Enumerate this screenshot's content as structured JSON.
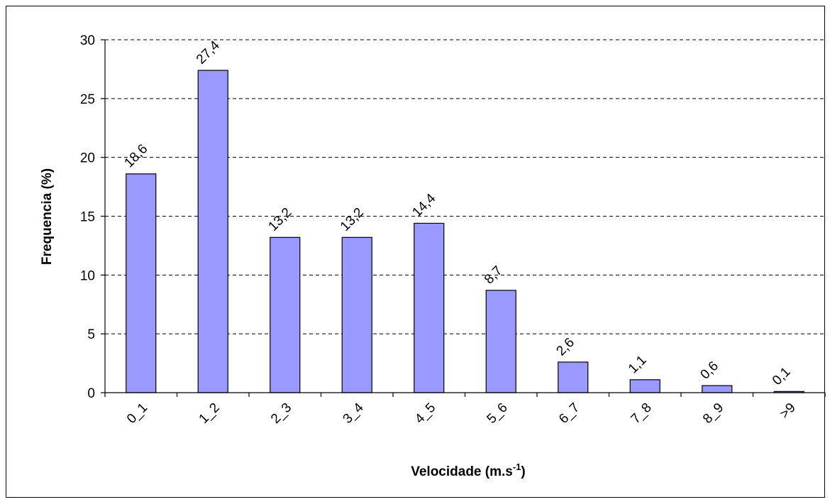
{
  "chart_data": {
    "type": "bar",
    "ylabel": "Frequencia (%)",
    "xlabel": {
      "text": "Velocidade (m.s",
      "superscript": "-1",
      "suffix": ")"
    },
    "categories": [
      "0_1",
      "1_2",
      "2_3",
      "3_4",
      "4_5",
      "5_6",
      "6_7",
      "7_8",
      "8_9",
      ">9"
    ],
    "values": [
      18.6,
      27.4,
      13.2,
      13.2,
      14.4,
      8.7,
      2.6,
      1.1,
      0.6,
      0.1
    ],
    "value_labels": [
      "18,6",
      "27,4",
      "13,2",
      "13,2",
      "14,4",
      "8,7",
      "2,6",
      "1,1",
      "0,6",
      "0,1"
    ],
    "color": "#9999ff",
    "ylim": [
      0,
      30
    ],
    "yticks": [
      0,
      5,
      10,
      15,
      20,
      25,
      30
    ],
    "grid": true
  }
}
